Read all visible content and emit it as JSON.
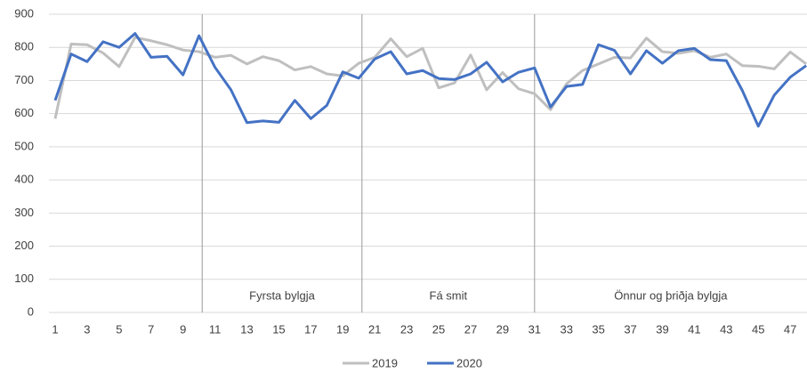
{
  "chart_data": {
    "type": "line",
    "categories": [
      1,
      null,
      3,
      null,
      5,
      null,
      7,
      null,
      9,
      null,
      11,
      null,
      13,
      null,
      15,
      null,
      17,
      null,
      19,
      null,
      21,
      null,
      23,
      null,
      25,
      null,
      27,
      null,
      29,
      null,
      31,
      null,
      33,
      null,
      35,
      null,
      37,
      null,
      39,
      null,
      41,
      null,
      43,
      null,
      45,
      null,
      47,
      null
    ],
    "series": [
      {
        "name": "2019",
        "color": "#bfbfbf",
        "values": [
          585,
          810,
          808,
          783,
          742,
          830,
          820,
          808,
          792,
          787,
          770,
          776,
          750,
          772,
          760,
          732,
          742,
          720,
          714,
          752,
          770,
          826,
          772,
          797,
          678,
          693,
          777,
          672,
          724,
          675,
          660,
          612,
          690,
          730,
          750,
          770,
          768,
          828,
          787,
          782,
          790,
          770,
          780,
          745,
          743,
          735,
          786,
          750
        ]
      },
      {
        "name": "2020",
        "color": "#4472c4",
        "values": [
          640,
          780,
          757,
          817,
          800,
          842,
          770,
          773,
          717,
          835,
          740,
          672,
          573,
          578,
          574,
          640,
          585,
          625,
          726,
          707,
          765,
          787,
          720,
          730,
          706,
          703,
          720,
          755,
          696,
          725,
          738,
          620,
          682,
          688,
          808,
          791,
          720,
          790,
          752,
          790,
          797,
          763,
          760,
          670,
          562,
          656,
          710,
          745
        ]
      }
    ],
    "ylim": [
      0,
      900
    ],
    "yticks": [
      0,
      100,
      200,
      300,
      400,
      500,
      600,
      700,
      800,
      900
    ],
    "grid": true,
    "dividers": [
      10.2,
      20.2,
      31
    ],
    "periods": [
      "Fyrsta bylgja",
      "Fá smit",
      "Önnur og þriðja bylgja"
    ]
  }
}
